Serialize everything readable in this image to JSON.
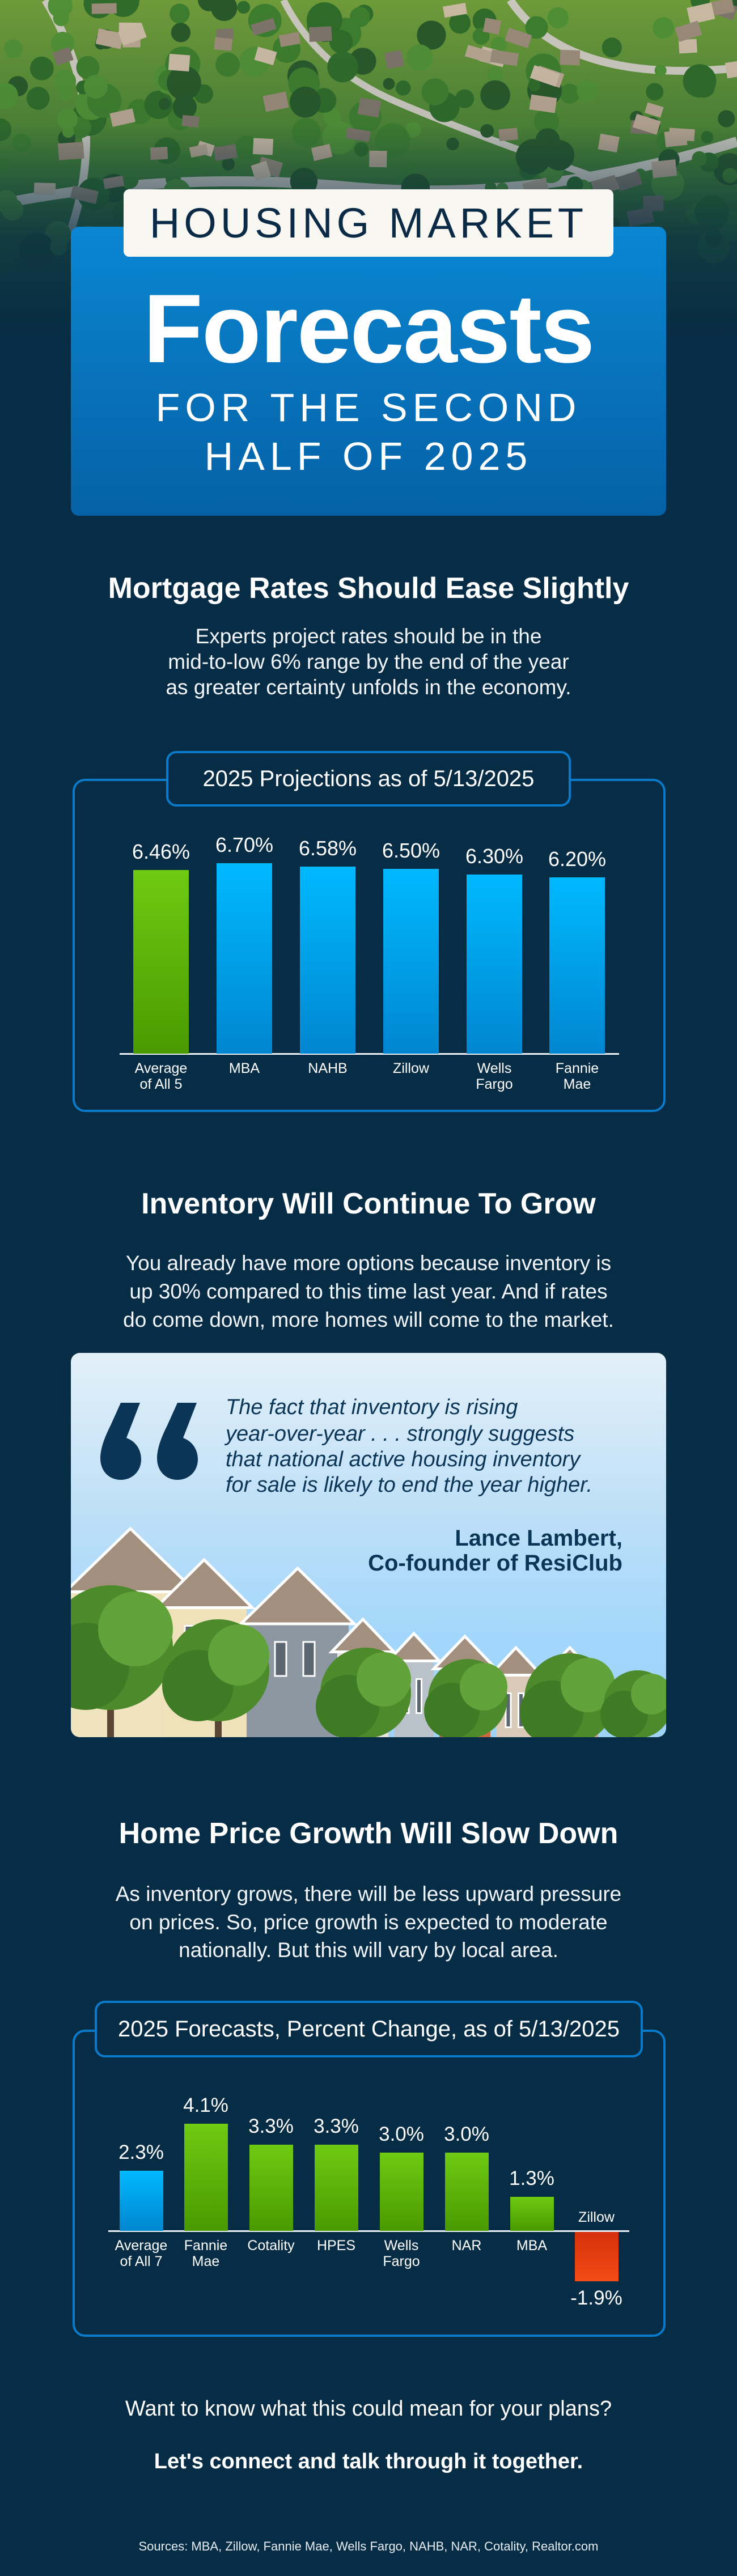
{
  "hero": {
    "label": "HOUSING MARKET",
    "title": "Forecasts",
    "subtitle_lines": [
      "FOR THE SECOND",
      "HALF OF 2025"
    ]
  },
  "mortgage": {
    "heading": "Mortgage Rates Should Ease Slightly",
    "paragraph_lines": [
      "Experts project rates should be in the",
      "mid-to-low 6% range by the end of the year",
      "as greater certainty unfolds in the economy."
    ]
  },
  "inventory": {
    "heading": "Inventory Will Continue To Grow",
    "paragraph_lines": [
      "You already have more options because inventory is",
      "up 30% compared to this time last year. And if rates",
      "do come down, more homes will come to the market."
    ],
    "quote_icon": "quotation-mark-icon",
    "quote_lines": [
      "The fact that inventory is rising",
      "year-over-year . . . strongly suggests",
      "that national active housing inventory",
      "for sale is likely to end the year higher."
    ],
    "author": "Lance Lambert,",
    "author_role": "Co-founder of ResiClub"
  },
  "price": {
    "heading": "Home Price Growth Will Slow Down",
    "paragraph_lines": [
      "As inventory grows, there will be less upward pressure",
      "on prices. So, price growth is expected to moderate",
      "nationally. But this will vary by local area."
    ]
  },
  "footer": {
    "question": "Want to know what this could mean for your plans?",
    "cta": "Let's connect and talk through it together.",
    "sources": "Sources: MBA, Zillow, Fannie Mae, Wells Fargo, NAHB, NAR, Cotality, Realtor.com"
  },
  "colors": {
    "background": "#072c45",
    "card_blue": "#0a86d2",
    "bar_blue": "#00b9ff",
    "bar_green": "#6cc814",
    "bar_red": "#e03a0e",
    "chart_border": "#0a7bcb",
    "quote_text": "#0b3556"
  },
  "chart_data": [
    {
      "type": "bar",
      "title": "2025 Projections as of 5/13/2025",
      "categories": [
        "Average\nof All 5",
        "MBA",
        "NAHB",
        "Zillow",
        "Wells\nFargo",
        "Fannie\nMae"
      ],
      "values": [
        6.46,
        6.7,
        6.58,
        6.5,
        6.3,
        6.2
      ],
      "value_labels": [
        "6.46%",
        "6.70%",
        "6.58%",
        "6.50%",
        "6.30%",
        "6.20%"
      ],
      "bar_colors": [
        "green",
        "blue",
        "blue",
        "blue",
        "blue",
        "blue"
      ],
      "unit": "%",
      "xlabel": "",
      "ylabel": "",
      "ylim": [
        0,
        6.7
      ],
      "grid": false
    },
    {
      "type": "bar",
      "title": "2025 Forecasts, Percent Change, as of 5/13/2025",
      "categories": [
        "Average\nof All 7",
        "Fannie\nMae",
        "Cotality",
        "HPES",
        "Wells\nFargo",
        "NAR",
        "MBA",
        "Zillow"
      ],
      "values": [
        2.3,
        4.1,
        3.3,
        3.3,
        3.0,
        3.0,
        1.3,
        -1.9
      ],
      "value_labels": [
        "2.3%",
        "4.1%",
        "3.3%",
        "3.3%",
        "3.0%",
        "3.0%",
        "1.3%",
        "-1.9%"
      ],
      "bar_colors": [
        "blue",
        "green",
        "green",
        "green",
        "green",
        "green",
        "green",
        "red"
      ],
      "unit": "%",
      "xlabel": "",
      "ylabel": "",
      "ylim": [
        -1.9,
        4.1
      ],
      "grid": false
    }
  ]
}
